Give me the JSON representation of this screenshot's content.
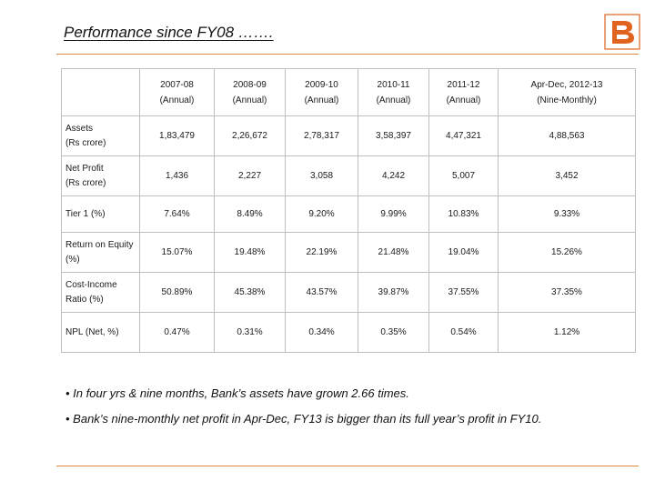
{
  "title": "Performance since FY08 …….",
  "logo": {
    "icon": "bank-logo-icon",
    "color": "#e0641f"
  },
  "table": {
    "headers": [
      {
        "period": "2007-08",
        "basis": "(Annual)"
      },
      {
        "period": "2008-09",
        "basis": "(Annual)"
      },
      {
        "period": "2009-10",
        "basis": "(Annual)"
      },
      {
        "period": "2010-11",
        "basis": "(Annual)"
      },
      {
        "period": "2011-12",
        "basis": "(Annual)"
      },
      {
        "period": "Apr-Dec, 2012-13",
        "basis": "(Nine-Monthly)"
      }
    ],
    "rows": [
      {
        "label_line1": "Assets",
        "label_line2": "(Rs crore)",
        "values": [
          "1,83,479",
          "2,26,672",
          "2,78,317",
          "3,58,397",
          "4,47,321",
          "4,88,563"
        ]
      },
      {
        "label_line1": "Net Profit",
        "label_line2": "(Rs crore)",
        "values": [
          "1,436",
          "2,227",
          "3,058",
          "4,242",
          "5,007",
          "3,452"
        ]
      },
      {
        "label_line1": "Tier 1 (%)",
        "label_line2": "",
        "values": [
          "7.64%",
          "8.49%",
          "9.20%",
          "9.99%",
          "10.83%",
          "9.33%"
        ]
      },
      {
        "label_line1": "Return on Equity",
        "label_line2": "(%)",
        "values": [
          "15.07%",
          "19.48%",
          "22.19%",
          "21.48%",
          "19.04%",
          "15.26%"
        ]
      },
      {
        "label_line1": "Cost-Income",
        "label_line2": "Ratio (%)",
        "values": [
          "50.89%",
          "45.38%",
          "43.57%",
          "39.87%",
          "37.55%",
          "37.35%"
        ]
      },
      {
        "label_line1": "NPL (Net, %)",
        "label_line2": "",
        "values": [
          "0.47%",
          "0.31%",
          "0.34%",
          "0.35%",
          "0.54%",
          "1.12%"
        ]
      }
    ]
  },
  "notes": [
    "• In four yrs &  nine months, Bank’s assets have grown 2.66 times.",
    "• Bank’s  nine-monthly net profit in Apr-Dec, FY13 is bigger than its full year’s profit in FY10."
  ]
}
